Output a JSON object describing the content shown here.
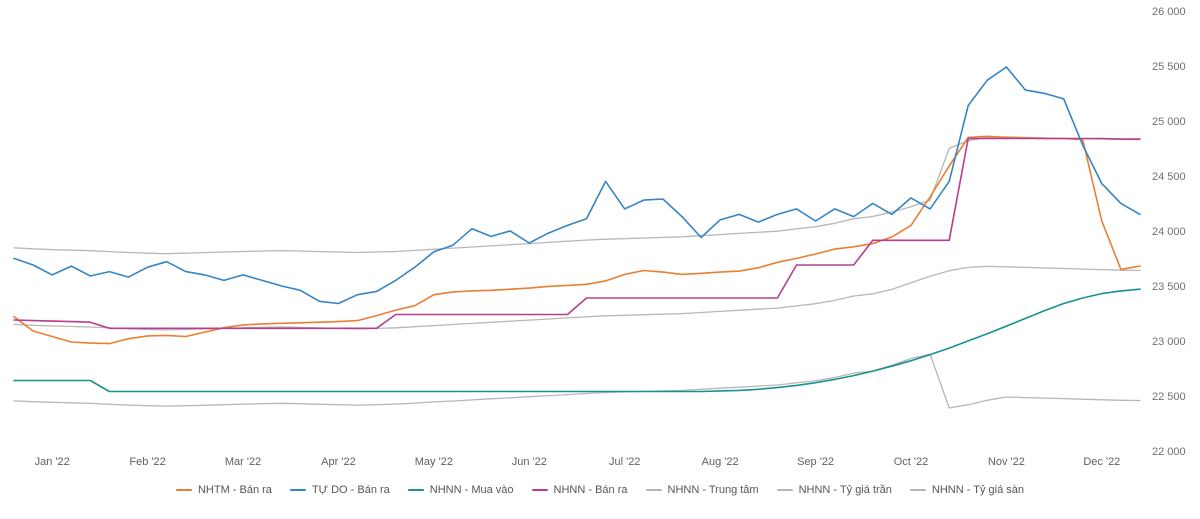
{
  "chart_data": {
    "type": "line",
    "title": "",
    "points_per_month": 5,
    "y_axis": {
      "min": 22000,
      "max": 26000,
      "ticks": [
        {
          "value": 26000,
          "label": "26 000"
        },
        {
          "value": 25500,
          "label": "25 500"
        },
        {
          "value": 25000,
          "label": "25 000"
        },
        {
          "value": 24500,
          "label": "24 500"
        },
        {
          "value": 24000,
          "label": "24 000"
        },
        {
          "value": 23500,
          "label": "23 500"
        },
        {
          "value": 23000,
          "label": "23 000"
        },
        {
          "value": 22500,
          "label": "22 500"
        },
        {
          "value": 22000,
          "label": "22 000"
        }
      ]
    },
    "x_axis": {
      "tick_labels": [
        "Jan '22",
        "Feb '22",
        "Mar '22",
        "Apr '22",
        "May '22",
        "Jun '22",
        "Jul '22",
        "Aug '22",
        "Sep '22",
        "Oct '22",
        "Nov '22",
        "Dec '22"
      ]
    },
    "legend_position": "bottom",
    "grid": false,
    "draw_order": [
      5,
      6,
      4,
      0,
      3,
      2,
      1
    ],
    "series": [
      {
        "name": "NHTM - Bán ra",
        "color": "#ea7e33",
        "width": 1.6,
        "values": [
          23230,
          23100,
          23050,
          23000,
          22990,
          22985,
          23030,
          23055,
          23060,
          23050,
          23090,
          23130,
          23155,
          23165,
          23170,
          23175,
          23180,
          23185,
          23195,
          23240,
          23290,
          23330,
          23430,
          23455,
          23465,
          23470,
          23480,
          23490,
          23505,
          23515,
          23525,
          23555,
          23615,
          23650,
          23635,
          23615,
          23625,
          23635,
          23645,
          23675,
          23725,
          23760,
          23800,
          23845,
          23865,
          23895,
          23955,
          24060,
          24320,
          24600,
          24860,
          24870,
          24860,
          24855,
          24850,
          24850,
          24840,
          24100,
          23660,
          23690
        ]
      },
      {
        "name": "TỰ DO - Bán ra",
        "color": "#3585c6",
        "width": 1.6,
        "values": [
          23760,
          23700,
          23610,
          23690,
          23600,
          23640,
          23590,
          23680,
          23730,
          23640,
          23610,
          23560,
          23610,
          23560,
          23510,
          23470,
          23370,
          23350,
          23430,
          23460,
          23560,
          23680,
          23820,
          23880,
          24030,
          23960,
          24010,
          23900,
          23990,
          24060,
          24120,
          24460,
          24210,
          24290,
          24300,
          24140,
          23950,
          24110,
          24160,
          24090,
          24160,
          24210,
          24100,
          24210,
          24140,
          24260,
          24160,
          24310,
          24210,
          24460,
          25150,
          25380,
          25500,
          25290,
          25260,
          25210,
          24790,
          24440,
          24260,
          24160
        ]
      },
      {
        "name": "NHNN - Mua vào",
        "color": "#18928e",
        "width": 1.6,
        "values": [
          22650,
          22650,
          22650,
          22650,
          22650,
          22550,
          22550,
          22550,
          22550,
          22550,
          22550,
          22550,
          22550,
          22550,
          22550,
          22550,
          22550,
          22550,
          22550,
          22550,
          22550,
          22550,
          22550,
          22550,
          22550,
          22550,
          22550,
          22550,
          22550,
          22550,
          22550,
          22550,
          22550,
          22550,
          22550,
          22550,
          22550,
          22555,
          22560,
          22570,
          22585,
          22605,
          22630,
          22660,
          22695,
          22735,
          22780,
          22830,
          22885,
          22945,
          23010,
          23075,
          23145,
          23215,
          23285,
          23350,
          23400,
          23440,
          23465,
          23480
        ]
      },
      {
        "name": "NHNN - Bán ra",
        "color": "#b83d8f",
        "width": 1.6,
        "values": [
          23200,
          23195,
          23190,
          23185,
          23180,
          23125,
          23125,
          23125,
          23125,
          23125,
          23125,
          23125,
          23125,
          23125,
          23125,
          23125,
          23125,
          23125,
          23125,
          23125,
          23250,
          23250,
          23250,
          23250,
          23250,
          23250,
          23250,
          23250,
          23250,
          23250,
          23400,
          23400,
          23400,
          23400,
          23400,
          23400,
          23400,
          23400,
          23400,
          23400,
          23400,
          23700,
          23700,
          23700,
          23700,
          23925,
          23925,
          23925,
          23925,
          23925,
          24850,
          24850,
          24850,
          24850,
          24850,
          24850,
          24850,
          24850,
          24845,
          24845
        ]
      },
      {
        "name": "NHNN - Trung tâm",
        "color": "#b7b7b7",
        "width": 1.3,
        "values": [
          23160,
          23152,
          23146,
          23141,
          23136,
          23128,
          23120,
          23114,
          23110,
          23114,
          23119,
          23124,
          23129,
          23133,
          23137,
          23133,
          23128,
          23124,
          23120,
          23124,
          23129,
          23139,
          23149,
          23159,
          23169,
          23179,
          23189,
          23199,
          23209,
          23219,
          23229,
          23238,
          23243,
          23248,
          23253,
          23258,
          23268,
          23278,
          23288,
          23298,
          23308,
          23328,
          23348,
          23378,
          23418,
          23438,
          23478,
          23538,
          23598,
          23648,
          23678,
          23688,
          23683,
          23678,
          23673,
          23668,
          23663,
          23658,
          23653,
          23650
        ]
      },
      {
        "name": "NHNN - Tỷ giá trần",
        "color": "#b7b7b7",
        "width": 1.3,
        "values": [
          23855,
          23847,
          23840,
          23835,
          23830,
          23822,
          23814,
          23807,
          23803,
          23807,
          23813,
          23818,
          23823,
          23827,
          23831,
          23827,
          23822,
          23818,
          23814,
          23818,
          23823,
          23833,
          23843,
          23854,
          23864,
          23874,
          23885,
          23895,
          23905,
          23916,
          23926,
          23935,
          23940,
          23945,
          23951,
          23956,
          23966,
          23976,
          23987,
          23997,
          24007,
          24028,
          24048,
          24079,
          24121,
          24141,
          24182,
          24230,
          24290,
          24760,
          24830,
          24860,
          24865,
          24860,
          24855,
          24850,
          24848,
          24845,
          24842,
          24840
        ]
      },
      {
        "name": "NHNN - Tỷ giá sàn",
        "color": "#b7b7b7",
        "width": 1.3,
        "values": [
          22465,
          22457,
          22452,
          22447,
          22442,
          22434,
          22426,
          22421,
          22417,
          22421,
          22425,
          22430,
          22435,
          22439,
          22443,
          22439,
          22434,
          22430,
          22426,
          22430,
          22435,
          22445,
          22455,
          22464,
          22474,
          22484,
          22493,
          22503,
          22513,
          22522,
          22532,
          22541,
          22546,
          22551,
          22555,
          22560,
          22570,
          22580,
          22589,
          22599,
          22609,
          22628,
          22648,
          22677,
          22716,
          22735,
          22790,
          22850,
          22890,
          22400,
          22430,
          22470,
          22500,
          22495,
          22490,
          22485,
          22480,
          22475,
          22470,
          22468
        ]
      }
    ]
  }
}
